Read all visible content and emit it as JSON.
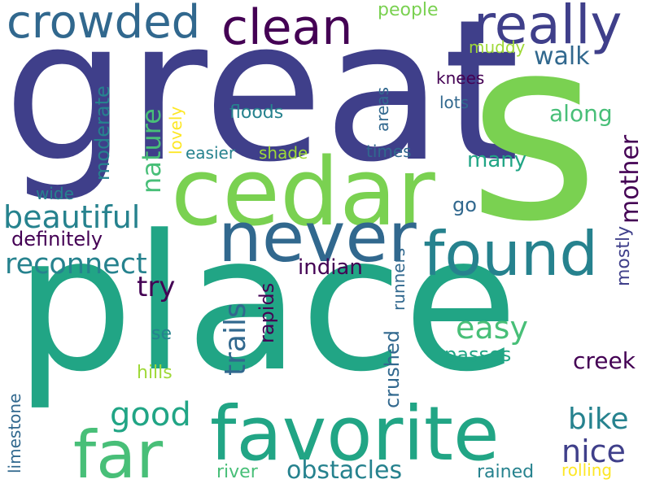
{
  "palette": {
    "dark_purple": "#440154",
    "indigo": "#3f3f8a",
    "blue": "#31688e",
    "teal": "#26828e",
    "teal_green": "#21a585",
    "green": "#48bf78",
    "light_green": "#7ad151",
    "lime": "#9fd938",
    "yellow": "#fde725"
  },
  "words": [
    {
      "text": "place",
      "color": "#21a585"
    },
    {
      "text": "great",
      "color": "#3f3f8a"
    },
    {
      "text": "s",
      "color": "#7ad151"
    },
    {
      "text": "cedar",
      "color": "#7ad151"
    },
    {
      "text": "favorite",
      "color": "#21a585"
    },
    {
      "text": "never",
      "color": "#31688e"
    },
    {
      "text": "found",
      "color": "#26828e"
    },
    {
      "text": "far",
      "color": "#48bf78"
    },
    {
      "text": "really",
      "color": "#3f3f8a"
    },
    {
      "text": "crowded",
      "color": "#31688e"
    },
    {
      "text": "clean",
      "color": "#440154"
    },
    {
      "text": "beautiful",
      "color": "#26828e"
    },
    {
      "text": "reconnect",
      "color": "#26828e"
    },
    {
      "text": "nature",
      "color": "#48bf78"
    },
    {
      "text": "trails",
      "color": "#31688e"
    },
    {
      "text": "good",
      "color": "#21a585"
    },
    {
      "text": "nice",
      "color": "#3f3f8a"
    },
    {
      "text": "bike",
      "color": "#26828e"
    },
    {
      "text": "easy",
      "color": "#48bf78"
    },
    {
      "text": "obstacles",
      "color": "#26828e"
    },
    {
      "text": "walk",
      "color": "#31688e"
    },
    {
      "text": "mother",
      "color": "#440154"
    },
    {
      "text": "creek",
      "color": "#440154"
    },
    {
      "text": "try",
      "color": "#440154"
    },
    {
      "text": "passes",
      "color": "#21a585"
    },
    {
      "text": "definitely",
      "color": "#440154"
    },
    {
      "text": "indian",
      "color": "#440154"
    },
    {
      "text": "along",
      "color": "#48bf78"
    },
    {
      "text": "many",
      "color": "#21a585"
    },
    {
      "text": "moderate",
      "color": "#26828e"
    },
    {
      "text": "mostly",
      "color": "#3f3f8a"
    },
    {
      "text": "crushed",
      "color": "#31688e"
    },
    {
      "text": "rapids",
      "color": "#440154"
    },
    {
      "text": "limestone",
      "color": "#31688e"
    },
    {
      "text": "rained",
      "color": "#26828e"
    },
    {
      "text": "people",
      "color": "#7ad151"
    },
    {
      "text": "runners",
      "color": "#31688e"
    },
    {
      "text": "go",
      "color": "#31688e"
    },
    {
      "text": "river",
      "color": "#48bf78"
    },
    {
      "text": "hills",
      "color": "#9fd938"
    },
    {
      "text": "se",
      "color": "#26828e"
    },
    {
      "text": "wide",
      "color": "#26828e"
    },
    {
      "text": "areas",
      "color": "#31688e"
    },
    {
      "text": "knees",
      "color": "#440154"
    },
    {
      "text": "lots",
      "color": "#31688e"
    },
    {
      "text": "floods",
      "color": "#26828e"
    },
    {
      "text": "shade",
      "color": "#9fd938"
    },
    {
      "text": "easier",
      "color": "#26828e"
    },
    {
      "text": "times",
      "color": "#31688e"
    },
    {
      "text": "muddy",
      "color": "#9fd938"
    },
    {
      "text": "lovely",
      "color": "#fde725"
    },
    {
      "text": "rolling",
      "color": "#fde725"
    }
  ]
}
